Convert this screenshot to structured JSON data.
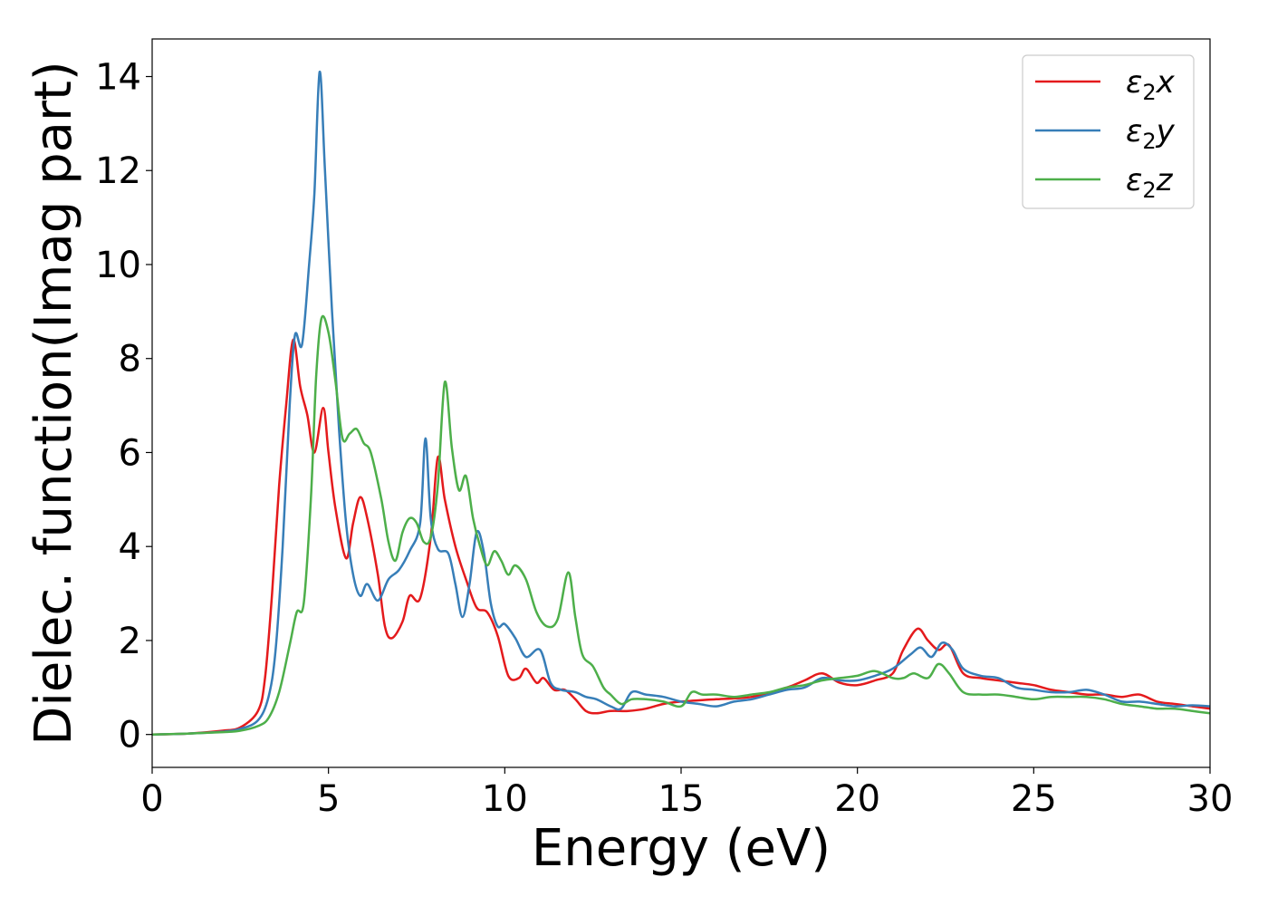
{
  "chart_data": {
    "type": "line",
    "title": "",
    "xlabel": "Energy (eV)",
    "ylabel": "Dielec. function(Imag part)",
    "xlim": [
      0,
      30
    ],
    "ylim": [
      -0.7,
      14.8
    ],
    "xticks": [
      0,
      5,
      10,
      15,
      20,
      25,
      30
    ],
    "yticks": [
      0,
      2,
      4,
      6,
      8,
      10,
      12,
      14
    ],
    "grid": false,
    "legend_position": "top-right",
    "series": [
      {
        "name": "ε2x",
        "legend_main": "ε",
        "legend_sub": "2",
        "legend_tail": "x",
        "color": "#e41a1c",
        "points": [
          [
            0,
            0
          ],
          [
            1,
            0.02
          ],
          [
            2,
            0.08
          ],
          [
            2.5,
            0.15
          ],
          [
            3,
            0.5
          ],
          [
            3.2,
            1.2
          ],
          [
            3.4,
            3.0
          ],
          [
            3.6,
            5.3
          ],
          [
            3.8,
            7.0
          ],
          [
            4.0,
            8.4
          ],
          [
            4.2,
            7.4
          ],
          [
            4.4,
            6.8
          ],
          [
            4.6,
            6.0
          ],
          [
            4.85,
            6.95
          ],
          [
            5.0,
            6.0
          ],
          [
            5.2,
            4.8
          ],
          [
            5.5,
            3.75
          ],
          [
            5.7,
            4.5
          ],
          [
            5.9,
            5.05
          ],
          [
            6.1,
            4.6
          ],
          [
            6.4,
            3.4
          ],
          [
            6.6,
            2.3
          ],
          [
            6.8,
            2.05
          ],
          [
            7.1,
            2.4
          ],
          [
            7.3,
            2.95
          ],
          [
            7.6,
            2.9
          ],
          [
            7.9,
            4.2
          ],
          [
            8.1,
            5.9
          ],
          [
            8.3,
            5.0
          ],
          [
            8.6,
            4.0
          ],
          [
            8.9,
            3.3
          ],
          [
            9.2,
            2.7
          ],
          [
            9.5,
            2.6
          ],
          [
            9.8,
            2.1
          ],
          [
            10.1,
            1.25
          ],
          [
            10.4,
            1.2
          ],
          [
            10.6,
            1.4
          ],
          [
            10.9,
            1.1
          ],
          [
            11.1,
            1.2
          ],
          [
            11.4,
            0.95
          ],
          [
            11.7,
            0.95
          ],
          [
            12.0,
            0.75
          ],
          [
            12.3,
            0.5
          ],
          [
            12.6,
            0.45
          ],
          [
            13.0,
            0.5
          ],
          [
            13.5,
            0.5
          ],
          [
            14.0,
            0.55
          ],
          [
            14.5,
            0.65
          ],
          [
            15.0,
            0.7
          ],
          [
            16.0,
            0.75
          ],
          [
            17.0,
            0.8
          ],
          [
            18.0,
            1.0
          ],
          [
            18.5,
            1.15
          ],
          [
            19.0,
            1.3
          ],
          [
            19.5,
            1.1
          ],
          [
            20.0,
            1.05
          ],
          [
            20.5,
            1.15
          ],
          [
            21.0,
            1.3
          ],
          [
            21.3,
            1.8
          ],
          [
            21.7,
            2.25
          ],
          [
            22.0,
            2.0
          ],
          [
            22.3,
            1.8
          ],
          [
            22.6,
            1.9
          ],
          [
            23.0,
            1.3
          ],
          [
            23.5,
            1.2
          ],
          [
            24.0,
            1.15
          ],
          [
            24.5,
            1.1
          ],
          [
            25.0,
            1.05
          ],
          [
            25.5,
            0.95
          ],
          [
            26.0,
            0.9
          ],
          [
            26.5,
            0.85
          ],
          [
            27.0,
            0.85
          ],
          [
            27.5,
            0.8
          ],
          [
            28.0,
            0.85
          ],
          [
            28.5,
            0.7
          ],
          [
            29.0,
            0.65
          ],
          [
            29.5,
            0.6
          ],
          [
            30.0,
            0.55
          ]
        ]
      },
      {
        "name": "ε2y",
        "legend_main": "ε",
        "legend_sub": "2",
        "legend_tail": "y",
        "color": "#377eb8",
        "points": [
          [
            0,
            0
          ],
          [
            1,
            0.02
          ],
          [
            2,
            0.06
          ],
          [
            2.5,
            0.12
          ],
          [
            3,
            0.3
          ],
          [
            3.3,
            0.8
          ],
          [
            3.5,
            1.8
          ],
          [
            3.7,
            4.0
          ],
          [
            3.9,
            7.0
          ],
          [
            4.05,
            8.5
          ],
          [
            4.25,
            8.3
          ],
          [
            4.45,
            10.0
          ],
          [
            4.6,
            11.5
          ],
          [
            4.75,
            14.1
          ],
          [
            4.9,
            12.0
          ],
          [
            5.1,
            9.0
          ],
          [
            5.3,
            6.5
          ],
          [
            5.5,
            4.5
          ],
          [
            5.7,
            3.4
          ],
          [
            5.9,
            2.95
          ],
          [
            6.1,
            3.2
          ],
          [
            6.4,
            2.85
          ],
          [
            6.7,
            3.3
          ],
          [
            7.0,
            3.5
          ],
          [
            7.3,
            3.9
          ],
          [
            7.6,
            4.5
          ],
          [
            7.75,
            6.3
          ],
          [
            7.9,
            4.6
          ],
          [
            8.1,
            3.95
          ],
          [
            8.4,
            3.85
          ],
          [
            8.6,
            3.2
          ],
          [
            8.8,
            2.5
          ],
          [
            9.0,
            3.2
          ],
          [
            9.2,
            4.3
          ],
          [
            9.4,
            3.9
          ],
          [
            9.6,
            2.8
          ],
          [
            9.8,
            2.3
          ],
          [
            10.0,
            2.35
          ],
          [
            10.3,
            2.05
          ],
          [
            10.6,
            1.65
          ],
          [
            11.0,
            1.8
          ],
          [
            11.3,
            1.1
          ],
          [
            11.6,
            0.95
          ],
          [
            12.0,
            0.9
          ],
          [
            12.3,
            0.8
          ],
          [
            12.6,
            0.75
          ],
          [
            13.0,
            0.6
          ],
          [
            13.3,
            0.55
          ],
          [
            13.6,
            0.9
          ],
          [
            14.0,
            0.85
          ],
          [
            14.5,
            0.8
          ],
          [
            15.0,
            0.7
          ],
          [
            15.5,
            0.65
          ],
          [
            16.0,
            0.6
          ],
          [
            16.5,
            0.7
          ],
          [
            17.0,
            0.75
          ],
          [
            17.5,
            0.85
          ],
          [
            18.0,
            0.95
          ],
          [
            18.5,
            1.0
          ],
          [
            19.0,
            1.2
          ],
          [
            19.5,
            1.15
          ],
          [
            20.0,
            1.15
          ],
          [
            20.5,
            1.25
          ],
          [
            21.0,
            1.4
          ],
          [
            21.5,
            1.7
          ],
          [
            21.8,
            1.85
          ],
          [
            22.1,
            1.65
          ],
          [
            22.4,
            1.95
          ],
          [
            22.7,
            1.8
          ],
          [
            23.0,
            1.4
          ],
          [
            23.5,
            1.25
          ],
          [
            24.0,
            1.2
          ],
          [
            24.5,
            1.0
          ],
          [
            25.0,
            0.95
          ],
          [
            25.5,
            0.9
          ],
          [
            26.0,
            0.9
          ],
          [
            26.5,
            0.95
          ],
          [
            27.0,
            0.85
          ],
          [
            27.5,
            0.7
          ],
          [
            28.0,
            0.7
          ],
          [
            28.5,
            0.65
          ],
          [
            29.0,
            0.6
          ],
          [
            29.5,
            0.62
          ],
          [
            30.0,
            0.6
          ]
        ]
      },
      {
        "name": "ε2z",
        "legend_main": "ε",
        "legend_sub": "2",
        "legend_tail": "z",
        "color": "#4daf4a",
        "points": [
          [
            0,
            0
          ],
          [
            1,
            0.02
          ],
          [
            2,
            0.05
          ],
          [
            2.5,
            0.08
          ],
          [
            3,
            0.18
          ],
          [
            3.3,
            0.35
          ],
          [
            3.6,
            0.9
          ],
          [
            3.9,
            1.9
          ],
          [
            4.1,
            2.6
          ],
          [
            4.3,
            2.8
          ],
          [
            4.5,
            5.0
          ],
          [
            4.65,
            7.6
          ],
          [
            4.8,
            8.85
          ],
          [
            5.0,
            8.55
          ],
          [
            5.2,
            7.5
          ],
          [
            5.4,
            6.3
          ],
          [
            5.6,
            6.4
          ],
          [
            5.8,
            6.5
          ],
          [
            6.0,
            6.2
          ],
          [
            6.2,
            6.0
          ],
          [
            6.5,
            5.0
          ],
          [
            6.7,
            4.1
          ],
          [
            6.9,
            3.7
          ],
          [
            7.1,
            4.3
          ],
          [
            7.3,
            4.6
          ],
          [
            7.5,
            4.5
          ],
          [
            7.7,
            4.1
          ],
          [
            7.9,
            4.2
          ],
          [
            8.1,
            5.3
          ],
          [
            8.3,
            7.5
          ],
          [
            8.5,
            6.1
          ],
          [
            8.7,
            5.2
          ],
          [
            8.9,
            5.5
          ],
          [
            9.1,
            4.6
          ],
          [
            9.3,
            4.0
          ],
          [
            9.5,
            3.6
          ],
          [
            9.7,
            3.9
          ],
          [
            9.9,
            3.7
          ],
          [
            10.1,
            3.4
          ],
          [
            10.3,
            3.6
          ],
          [
            10.6,
            3.3
          ],
          [
            10.9,
            2.6
          ],
          [
            11.2,
            2.3
          ],
          [
            11.5,
            2.45
          ],
          [
            11.8,
            3.45
          ],
          [
            12.0,
            2.5
          ],
          [
            12.2,
            1.7
          ],
          [
            12.5,
            1.45
          ],
          [
            12.8,
            1.0
          ],
          [
            13.0,
            0.85
          ],
          [
            13.3,
            0.65
          ],
          [
            13.6,
            0.75
          ],
          [
            14.0,
            0.75
          ],
          [
            14.5,
            0.7
          ],
          [
            15.0,
            0.6
          ],
          [
            15.3,
            0.9
          ],
          [
            15.6,
            0.85
          ],
          [
            16.0,
            0.85
          ],
          [
            16.5,
            0.8
          ],
          [
            17.0,
            0.85
          ],
          [
            17.5,
            0.9
          ],
          [
            18.0,
            1.0
          ],
          [
            18.5,
            1.05
          ],
          [
            19.0,
            1.15
          ],
          [
            19.5,
            1.2
          ],
          [
            20.0,
            1.25
          ],
          [
            20.5,
            1.35
          ],
          [
            21.0,
            1.2
          ],
          [
            21.3,
            1.2
          ],
          [
            21.6,
            1.3
          ],
          [
            22.0,
            1.2
          ],
          [
            22.3,
            1.5
          ],
          [
            22.6,
            1.3
          ],
          [
            23.0,
            0.9
          ],
          [
            23.5,
            0.85
          ],
          [
            24.0,
            0.85
          ],
          [
            24.5,
            0.8
          ],
          [
            25.0,
            0.75
          ],
          [
            25.5,
            0.8
          ],
          [
            26.0,
            0.8
          ],
          [
            26.5,
            0.8
          ],
          [
            27.0,
            0.75
          ],
          [
            27.5,
            0.65
          ],
          [
            28.0,
            0.6
          ],
          [
            28.5,
            0.55
          ],
          [
            29.0,
            0.55
          ],
          [
            29.5,
            0.5
          ],
          [
            30.0,
            0.45
          ]
        ]
      }
    ]
  }
}
